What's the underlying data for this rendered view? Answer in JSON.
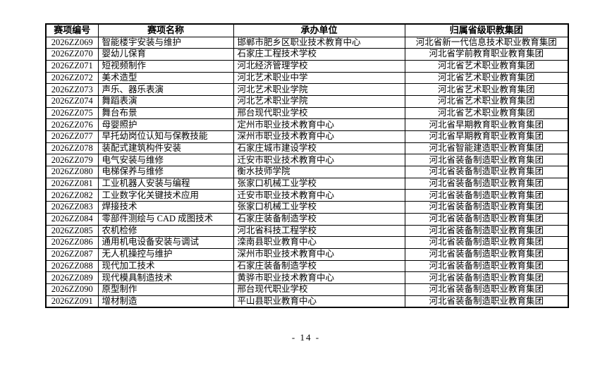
{
  "page": {
    "number_label": "- 14 -"
  },
  "table": {
    "columns": [
      "赛项编号",
      "赛项名称",
      "承办单位",
      "归属省级职教集团"
    ],
    "rows": [
      [
        "2026ZZ069",
        "智能楼宇安装与维护",
        "邯郸市肥乡区职业技术教育中心",
        "河北省新一代信息技术职业教育集团"
      ],
      [
        "2026ZZ070",
        "婴幼儿保育",
        "石家庄工程技术学校",
        "河北省学前教育职业教育集团"
      ],
      [
        "2026ZZ071",
        "短视频制作",
        "河北经济管理学校",
        "河北省艺术职业教育集团"
      ],
      [
        "2026ZZ072",
        "美术造型",
        "河北艺术职业中学",
        "河北省艺术职业教育集团"
      ],
      [
        "2026ZZ073",
        "声乐、器乐表演",
        "河北艺术职业学院",
        "河北省艺术职业教育集团"
      ],
      [
        "2026ZZ074",
        "舞蹈表演",
        "河北艺术职业学院",
        "河北省艺术职业教育集团"
      ],
      [
        "2026ZZ075",
        "舞台布景",
        "邢台现代职业学校",
        "河北省艺术职业教育集团"
      ],
      [
        "2026ZZ076",
        "母婴照护",
        "定州市职业技术教育中心",
        "河北省早期教育职业教育集团"
      ],
      [
        "2026ZZ077",
        "早托幼岗位认知与保教技能",
        "深州市职业技术教育中心",
        "河北省早期教育职业教育集团"
      ],
      [
        "2026ZZ078",
        "装配式建筑构件安装",
        "石家庄城市建设学校",
        "河北省智能建造职业教育集团"
      ],
      [
        "2026ZZ079",
        "电气安装与维修",
        "迁安市职业技术教育中心",
        "河北省装备制造职业教育集团"
      ],
      [
        "2026ZZ080",
        "电梯保养与维修",
        "衡水技师学院",
        "河北省装备制造职业教育集团"
      ],
      [
        "2026ZZ081",
        "工业机器人安装与编程",
        "张家口机械工业学校",
        "河北省装备制造职业教育集团"
      ],
      [
        "2026ZZ082",
        "工业数字化关键技术应用",
        "迁安市职业技术教育中心",
        "河北省装备制造职业教育集团"
      ],
      [
        "2026ZZ083",
        "焊接技术",
        "张家口机械工业学校",
        "河北省装备制造职业教育集团"
      ],
      [
        "2026ZZ084",
        "零部件测绘与 CAD 成图技术",
        "石家庄装备制造学校",
        "河北省装备制造职业教育集团"
      ],
      [
        "2026ZZ085",
        "农机检修",
        "河北省科技工程学校",
        "河北省装备制造职业教育集团"
      ],
      [
        "2026ZZ086",
        "通用机电设备安装与调试",
        "滦南县职业教育中心",
        "河北省装备制造职业教育集团"
      ],
      [
        "2026ZZ087",
        "无人机操控与维护",
        "深州市职业技术教育中心",
        "河北省装备制造职业教育集团"
      ],
      [
        "2026ZZ088",
        "现代加工技术",
        "石家庄装备制造学校",
        "河北省装备制造职业教育集团"
      ],
      [
        "2026ZZ089",
        "现代模具制造技术",
        "黄骅市职业技术教育中心",
        "河北省装备制造职业教育集团"
      ],
      [
        "2026ZZ090",
        "原型制作",
        "邢台现代职业学校",
        "河北省装备制造职业教育集团"
      ],
      [
        "2026ZZ091",
        "增材制造",
        "平山县职业教育中心",
        "河北省装备制造职业教育集团"
      ]
    ]
  }
}
